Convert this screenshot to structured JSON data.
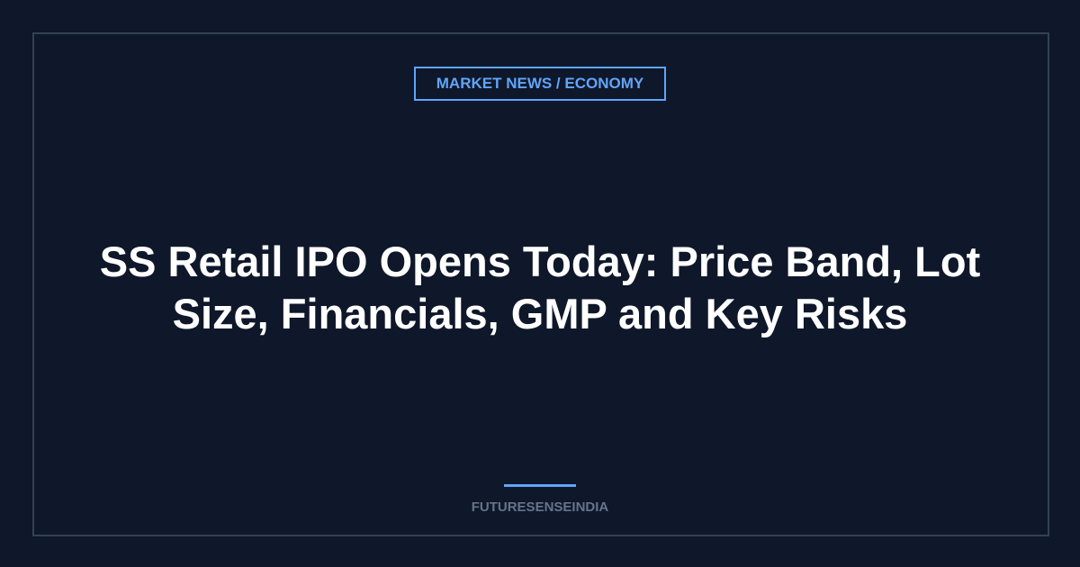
{
  "category": "MARKET NEWS / ECONOMY",
  "title": "SS Retail IPO Opens Today: Price Band, Lot Size, Financials, GMP and Key Risks",
  "brand": "FUTURESENSEINDIA"
}
